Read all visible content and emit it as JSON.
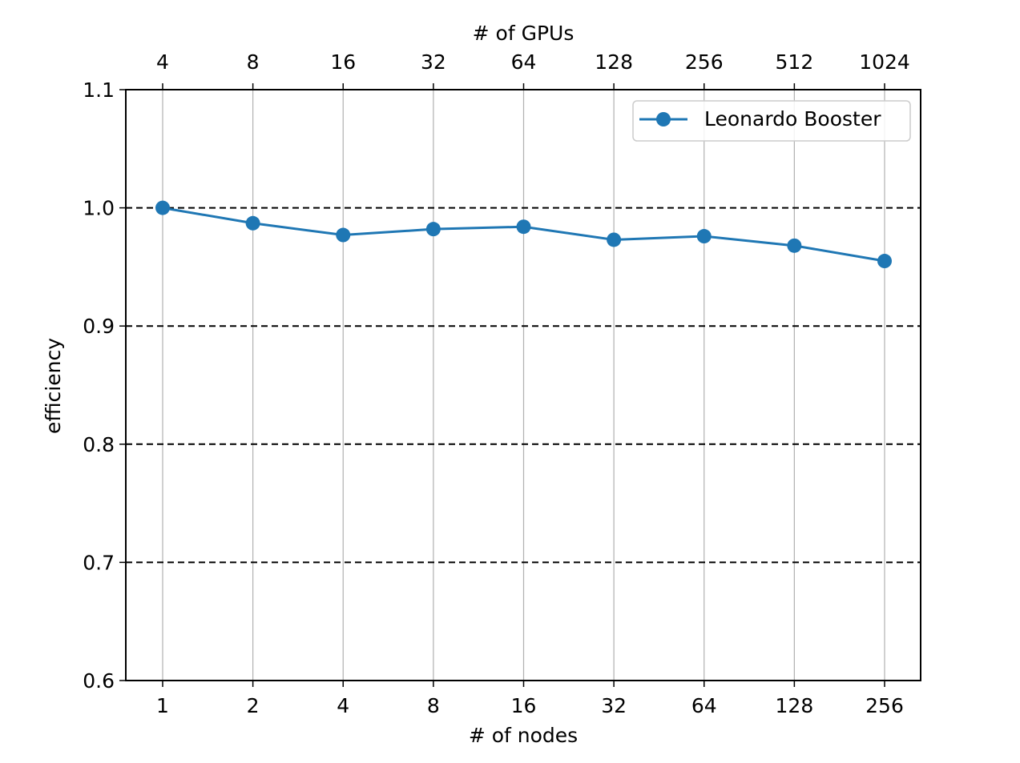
{
  "chart_data": {
    "type": "line",
    "xlabel": "# of nodes",
    "top_xlabel": "# of GPUs",
    "ylabel": "efficiency",
    "categories": [
      "1",
      "2",
      "4",
      "8",
      "16",
      "32",
      "64",
      "128",
      "256"
    ],
    "top_categories": [
      "4",
      "8",
      "16",
      "32",
      "64",
      "128",
      "256",
      "512",
      "1024"
    ],
    "x_scale": "log2",
    "ylim": [
      0.6,
      1.1
    ],
    "yticks": [
      "0.6",
      "0.7",
      "0.8",
      "0.9",
      "1.0",
      "1.1"
    ],
    "grid": {
      "vertical": "solid light gray",
      "horizontal": "dashed black"
    },
    "legend_position": "top-right",
    "series": [
      {
        "name": "Leonardo Booster",
        "color": "#1f77b4",
        "marker": "circle",
        "values": [
          1.0,
          0.987,
          0.977,
          0.982,
          0.984,
          0.973,
          0.976,
          0.968,
          0.955
        ]
      }
    ]
  }
}
